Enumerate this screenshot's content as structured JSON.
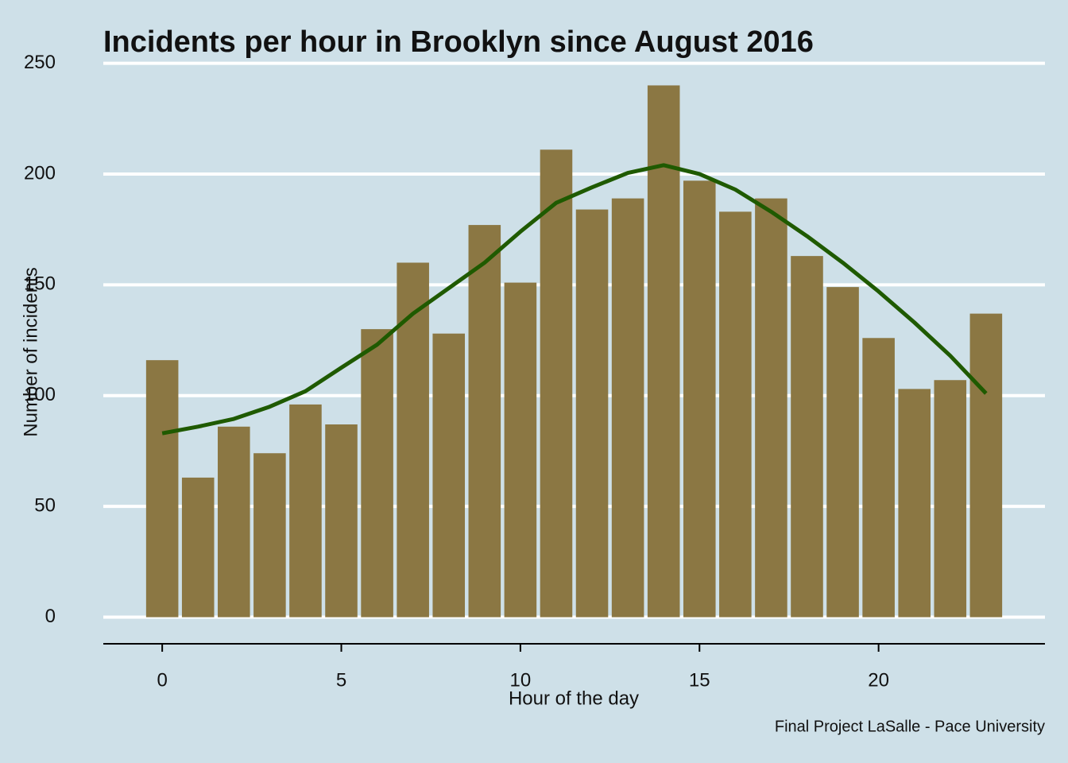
{
  "chart_data": {
    "type": "bar",
    "title": "Incidents per hour in Brooklyn since August 2016",
    "x_label": "Hour of the day",
    "y_label": "Number of incidents",
    "caption": "Final Project LaSalle - Pace University",
    "x": [
      0,
      1,
      2,
      3,
      4,
      5,
      6,
      7,
      8,
      9,
      10,
      11,
      12,
      13,
      14,
      15,
      16,
      17,
      18,
      19,
      20,
      21,
      22,
      23
    ],
    "series": [
      {
        "type": "bar",
        "color": "#8b7743",
        "values": [
          116,
          63,
          86,
          74,
          96,
          87,
          130,
          160,
          128,
          177,
          151,
          211,
          184,
          189,
          240,
          197,
          183,
          189,
          163,
          149,
          126,
          103,
          107,
          137
        ]
      },
      {
        "type": "line",
        "color": "#1f5a00",
        "values": [
          83,
          86,
          89.5,
          95,
          102,
          112.6,
          123,
          137,
          148.5,
          160,
          174,
          187,
          194,
          200.5,
          204,
          200,
          193,
          183,
          172,
          160,
          147,
          133,
          118,
          101
        ]
      }
    ],
    "xlim": [
      -1.645,
      24.645
    ],
    "xticks": [
      0,
      5,
      10,
      15,
      20
    ],
    "ylim": [
      -12,
      252
    ],
    "yticks": [
      0,
      50,
      100,
      150,
      200,
      250
    ],
    "grid": true
  }
}
